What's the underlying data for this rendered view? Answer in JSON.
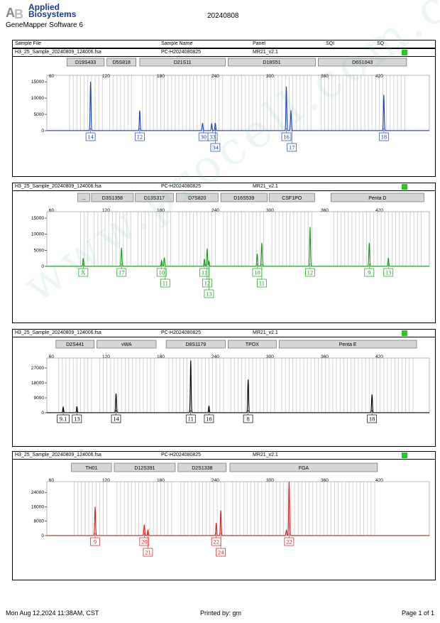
{
  "header": {
    "brand_line1": "Applied",
    "brand_line2": "Biosystems",
    "software": "GeneMapper Software 6",
    "report_date": "20240808"
  },
  "columns": [
    "Sample File",
    "Sample Name",
    "Panel",
    "SQI",
    "SQ"
  ],
  "footer": {
    "printed_date": "Mon Aug 12,2024 11:38AM, CST",
    "printed_by": "Printed by: gm",
    "page": "Page 1 of 1"
  },
  "watermark": "www.procell.com.cn",
  "colors": {
    "blue": "#1f3fbf",
    "green": "#1c9a1c",
    "black": "#000000",
    "red": "#cc1f1f",
    "status": "#22cc22"
  },
  "chart_data": [
    {
      "type": "line",
      "dye": "blue",
      "sample_file": "H3_25_Sample_20240809_124006.fsa",
      "sample_name": "PC-H2024080825",
      "panel": "MR21_v2.1",
      "x_ticks": [
        60,
        120,
        180,
        240,
        300,
        360,
        420
      ],
      "xlim": [
        55,
        475
      ],
      "y_ticks": [
        0,
        5000,
        10000,
        15000
      ],
      "ylim": [
        0,
        17000
      ],
      "loci": [
        {
          "name": "D19S433",
          "start": 77,
          "end": 118
        },
        {
          "name": "D5S818",
          "start": 121,
          "end": 153
        },
        {
          "name": "D21S11",
          "start": 157,
          "end": 251
        },
        {
          "name": "D18S51",
          "start": 254,
          "end": 350
        },
        {
          "name": "D6S1043",
          "start": 353,
          "end": 450
        }
      ],
      "peaks": [
        {
          "x": 103,
          "y": 15000
        },
        {
          "x": 157,
          "y": 6200
        },
        {
          "x": 226,
          "y": 2300
        },
        {
          "x": 236,
          "y": 2200
        },
        {
          "x": 240,
          "y": 2300
        },
        {
          "x": 318,
          "y": 13500
        },
        {
          "x": 323,
          "y": 6300
        },
        {
          "x": 425,
          "y": 11000
        }
      ],
      "alleles": [
        {
          "label": "14",
          "x": 103,
          "row": 0
        },
        {
          "label": "12",
          "x": 157,
          "row": 0
        },
        {
          "label": "30",
          "x": 227,
          "row": 0
        },
        {
          "label": "33",
          "x": 237,
          "row": 0
        },
        {
          "label": "34",
          "x": 240,
          "row": 1
        },
        {
          "label": "16",
          "x": 318,
          "row": 0
        },
        {
          "label": "17",
          "x": 324,
          "row": 1
        },
        {
          "label": "18",
          "x": 425,
          "row": 0
        }
      ]
    },
    {
      "type": "line",
      "dye": "green",
      "sample_file": "H3_25_Sample_20240809_124006.fsa",
      "sample_name": "PC-H2024080825",
      "panel": "MR21_v2.1",
      "x_ticks": [
        60,
        120,
        180,
        240,
        300,
        360,
        420
      ],
      "xlim": [
        55,
        475
      ],
      "y_ticks": [
        0,
        5000,
        10000,
        15000
      ],
      "ylim": [
        0,
        17000
      ],
      "loci": [
        {
          "name": "...",
          "start": 89,
          "end": 102
        },
        {
          "name": "D3S1358",
          "start": 104,
          "end": 150
        },
        {
          "name": "D13S317",
          "start": 152,
          "end": 194
        },
        {
          "name": "D7S820",
          "start": 197,
          "end": 243
        },
        {
          "name": "D16S539",
          "start": 246,
          "end": 297
        },
        {
          "name": "CSF1PO",
          "start": 299,
          "end": 349
        },
        {
          "name": "Penta D",
          "start": 367,
          "end": 469
        }
      ],
      "peaks": [
        {
          "x": 95,
          "y": 2500
        },
        {
          "x": 137,
          "y": 5800
        },
        {
          "x": 181,
          "y": 1800
        },
        {
          "x": 184,
          "y": 2700
        },
        {
          "x": 228,
          "y": 2300
        },
        {
          "x": 231,
          "y": 5500
        },
        {
          "x": 233,
          "y": 1600
        },
        {
          "x": 286,
          "y": 3900
        },
        {
          "x": 291,
          "y": 7300
        },
        {
          "x": 344,
          "y": 12200
        },
        {
          "x": 409,
          "y": 7300
        },
        {
          "x": 430,
          "y": 2600
        }
      ],
      "alleles": [
        {
          "label": "X",
          "x": 95,
          "row": 0
        },
        {
          "label": "17",
          "x": 137,
          "row": 0
        },
        {
          "label": "10",
          "x": 181,
          "row": 0
        },
        {
          "label": "11",
          "x": 185,
          "row": 1
        },
        {
          "label": "11",
          "x": 228,
          "row": 0
        },
        {
          "label": "12",
          "x": 231,
          "row": 1
        },
        {
          "label": "13",
          "x": 233,
          "row": 2
        },
        {
          "label": "10",
          "x": 286,
          "row": 0
        },
        {
          "label": "11",
          "x": 291,
          "row": 1
        },
        {
          "label": "12",
          "x": 344,
          "row": 0
        },
        {
          "label": "9",
          "x": 409,
          "row": 0
        },
        {
          "label": "13",
          "x": 430,
          "row": 0
        }
      ]
    },
    {
      "type": "line",
      "dye": "black",
      "sample_file": "H3_25_Sample_20240809_124006.fsa",
      "sample_name": "PC-H2024080825",
      "panel": "MR21_v2.1",
      "x_ticks": [
        60,
        120,
        180,
        240,
        300,
        360,
        420
      ],
      "xlim": [
        55,
        475
      ],
      "y_ticks": [
        0,
        9000,
        18000,
        27000
      ],
      "ylim": [
        0,
        33000
      ],
      "loci": [
        {
          "name": "D2S441",
          "start": 65,
          "end": 107
        },
        {
          "name": "vWA",
          "start": 110,
          "end": 175
        },
        {
          "name": "D8S1179",
          "start": 186,
          "end": 251
        },
        {
          "name": "TPOX",
          "start": 254,
          "end": 307
        },
        {
          "name": "Penta E",
          "start": 310,
          "end": 461
        }
      ],
      "peaks": [
        {
          "x": 73,
          "y": 3300
        },
        {
          "x": 88,
          "y": 3800
        },
        {
          "x": 131,
          "y": 11500
        },
        {
          "x": 213,
          "y": 31500
        },
        {
          "x": 233,
          "y": 4100
        },
        {
          "x": 276,
          "y": 20000
        },
        {
          "x": 412,
          "y": 11000
        }
      ],
      "alleles": [
        {
          "label": "9.1",
          "x": 73,
          "row": 0
        },
        {
          "label": "13",
          "x": 88,
          "row": 0
        },
        {
          "label": "14",
          "x": 131,
          "row": 0
        },
        {
          "label": "11",
          "x": 213,
          "row": 0
        },
        {
          "label": "16",
          "x": 233,
          "row": 0
        },
        {
          "label": "8",
          "x": 276,
          "row": 0
        },
        {
          "label": "18",
          "x": 412,
          "row": 0
        }
      ]
    },
    {
      "type": "line",
      "dye": "red",
      "sample_file": "H3_25_Sample_20240809_124006.fsa",
      "sample_name": "PC-H2024080825",
      "panel": "MR21_v2.1",
      "x_ticks": [
        60,
        120,
        180,
        240,
        300,
        360,
        420
      ],
      "xlim": [
        55,
        475
      ],
      "y_ticks": [
        0,
        8000,
        16000,
        24000
      ],
      "ylim": [
        0,
        30000
      ],
      "loci": [
        {
          "name": "TH01",
          "start": 82,
          "end": 126
        },
        {
          "name": "D12S391",
          "start": 129,
          "end": 196
        },
        {
          "name": "D2S1338",
          "start": 199,
          "end": 252
        },
        {
          "name": "FGA",
          "start": 256,
          "end": 418
        }
      ],
      "peaks": [
        {
          "x": 108,
          "y": 16000
        },
        {
          "x": 162,
          "y": 6000
        },
        {
          "x": 166,
          "y": 3000
        },
        {
          "x": 241,
          "y": 7000
        },
        {
          "x": 246,
          "y": 14000
        },
        {
          "x": 318,
          "y": 3000
        },
        {
          "x": 321,
          "y": 30000
        }
      ],
      "alleles": [
        {
          "label": "9",
          "x": 108,
          "row": 0
        },
        {
          "label": "20",
          "x": 162,
          "row": 0
        },
        {
          "label": "21",
          "x": 166,
          "row": 1
        },
        {
          "label": "22",
          "x": 241,
          "row": 0
        },
        {
          "label": "24",
          "x": 246,
          "row": 1
        },
        {
          "label": "22",
          "x": 321,
          "row": 0
        }
      ]
    }
  ]
}
